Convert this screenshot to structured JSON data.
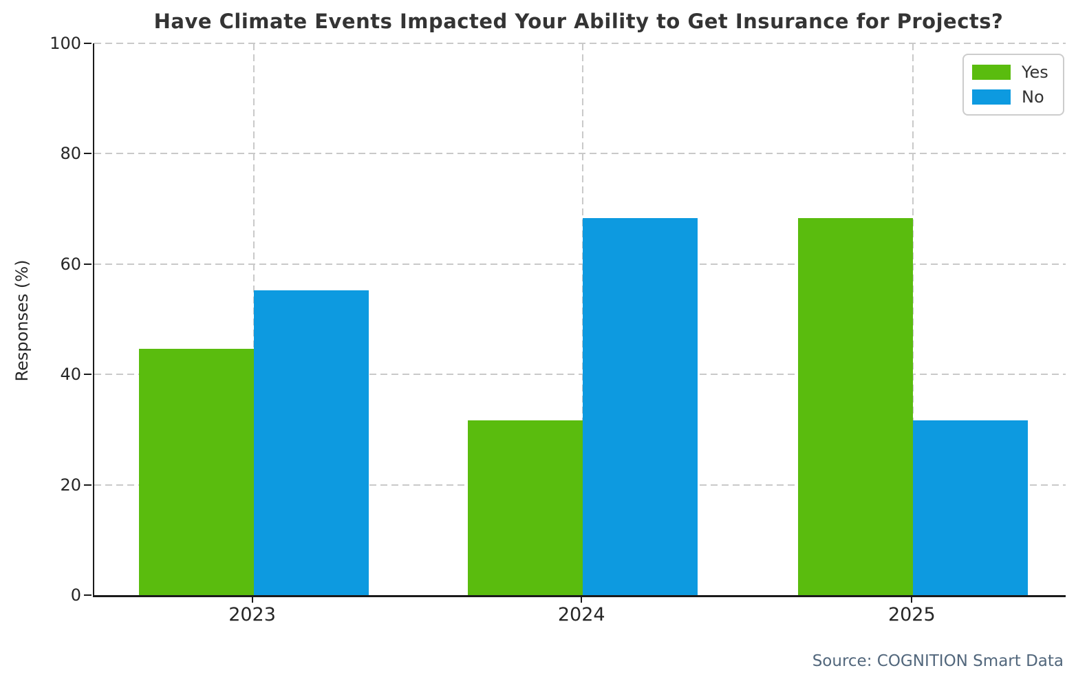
{
  "title": "Have Climate Events Impacted Your Ability to Get Insurance for Projects?",
  "source": "Source: COGNITION Smart Data",
  "chart_data": {
    "type": "bar",
    "categories": [
      "2023",
      "2024",
      "2025"
    ],
    "series": [
      {
        "name": "Yes",
        "color": "#5abc0e",
        "values": [
          44.7,
          31.7,
          68.3
        ]
      },
      {
        "name": "No",
        "color": "#0d9ae0",
        "values": [
          55.3,
          68.3,
          31.7
        ]
      }
    ],
    "title": "Have Climate Events Impacted Your Ability to Get Insurance for Projects?",
    "xlabel": "",
    "ylabel": "Responses (%)",
    "ylim": [
      0,
      100
    ],
    "yticks": [
      0,
      20,
      40,
      60,
      80,
      100
    ],
    "grid": true,
    "grid_style": "dashed",
    "legend_position": "upper right"
  }
}
